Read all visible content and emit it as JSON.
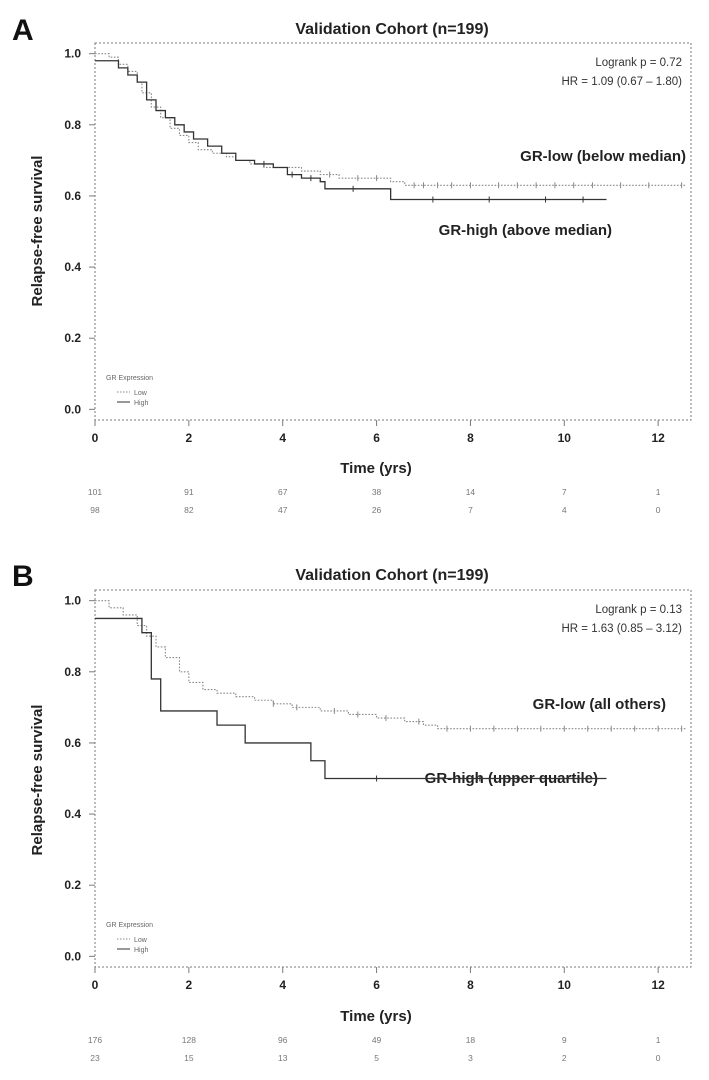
{
  "colors": {
    "low": "#8a8a8a",
    "high": "#333333",
    "frame": "#7a7a7a"
  },
  "chart_data": [
    {
      "type": "line",
      "panel": "A",
      "title": "Validation Cohort (n=199)",
      "xlabel": "Time (yrs)",
      "ylabel": "Relapse-free survival",
      "xlim": [
        0,
        12.7
      ],
      "ylim": [
        -0.03,
        1.03
      ],
      "xticks": [
        0,
        2,
        4,
        6,
        8,
        10,
        12
      ],
      "xtick_labels": [
        "0",
        "2",
        "4",
        "6",
        "8",
        "10",
        "12"
      ],
      "yticks": [
        0.0,
        0.2,
        0.4,
        0.6,
        0.8,
        1.0
      ],
      "ytick_labels": [
        "0.0",
        "0.2",
        "0.4",
        "0.6",
        "0.8",
        "1.0"
      ],
      "grid": false,
      "stats": [
        "Logrank p = 0.72",
        "HR = 1.09 (0.67 – 1.80)"
      ],
      "legend": {
        "title": "GR Expression",
        "entries": [
          "Low",
          "High"
        ],
        "position": "bottom-left"
      },
      "annotations": [
        "GR-low (below median)",
        "GR-high (above median)"
      ],
      "series": [
        {
          "name": "Low",
          "style": "dotted",
          "x": [
            0,
            0.3,
            0.5,
            0.7,
            0.9,
            1.0,
            1.2,
            1.4,
            1.6,
            1.8,
            2.0,
            2.2,
            2.5,
            2.8,
            3.0,
            3.3,
            3.6,
            4.0,
            4.4,
            4.8,
            5.2,
            5.8,
            6.3,
            6.6,
            12.6
          ],
          "y": [
            1.0,
            0.99,
            0.97,
            0.95,
            0.92,
            0.89,
            0.85,
            0.82,
            0.79,
            0.77,
            0.75,
            0.73,
            0.72,
            0.71,
            0.7,
            0.69,
            0.68,
            0.68,
            0.67,
            0.66,
            0.65,
            0.65,
            0.64,
            0.63,
            0.63
          ],
          "censor_x": [
            5.0,
            5.6,
            6.0,
            6.8,
            7.0,
            7.3,
            7.6,
            8.0,
            8.6,
            9.0,
            9.4,
            9.8,
            10.2,
            10.6,
            11.2,
            11.8,
            12.5
          ]
        },
        {
          "name": "High",
          "style": "solid",
          "x": [
            0,
            0.3,
            0.5,
            0.7,
            0.9,
            1.1,
            1.3,
            1.5,
            1.7,
            1.9,
            2.1,
            2.4,
            2.7,
            3.0,
            3.4,
            3.8,
            4.1,
            4.4,
            4.8,
            4.9,
            6.3,
            10.9
          ],
          "y": [
            0.98,
            0.98,
            0.96,
            0.94,
            0.92,
            0.87,
            0.84,
            0.82,
            0.8,
            0.78,
            0.76,
            0.74,
            0.72,
            0.7,
            0.69,
            0.68,
            0.66,
            0.65,
            0.64,
            0.62,
            0.59,
            0.59
          ],
          "censor_x": [
            3.6,
            4.2,
            4.6,
            5.5,
            7.2,
            8.4,
            9.6,
            10.4
          ]
        }
      ],
      "risk_table": [
        [
          "101",
          "91",
          "67",
          "38",
          "14",
          "7",
          "1"
        ],
        [
          "98",
          "82",
          "47",
          "26",
          "7",
          "4",
          "0"
        ]
      ]
    },
    {
      "type": "line",
      "panel": "B",
      "title": "Validation Cohort (n=199)",
      "xlabel": "Time (yrs)",
      "ylabel": "Relapse-free survival",
      "xlim": [
        0,
        12.7
      ],
      "ylim": [
        -0.03,
        1.03
      ],
      "xticks": [
        0,
        2,
        4,
        6,
        8,
        10,
        12
      ],
      "xtick_labels": [
        "0",
        "2",
        "4",
        "6",
        "8",
        "10",
        "12"
      ],
      "yticks": [
        0.0,
        0.2,
        0.4,
        0.6,
        0.8,
        1.0
      ],
      "ytick_labels": [
        "0.0",
        "0.2",
        "0.4",
        "0.6",
        "0.8",
        "1.0"
      ],
      "grid": false,
      "stats": [
        "Logrank p = 0.13",
        "HR = 1.63 (0.85 – 3.12)"
      ],
      "legend": {
        "title": "GR Expression",
        "entries": [
          "Low",
          "High"
        ],
        "position": "bottom-left"
      },
      "annotations": [
        "GR-low (all others)",
        "GR-high (upper quartile)"
      ],
      "series": [
        {
          "name": "Low",
          "style": "dotted",
          "x": [
            0,
            0.3,
            0.6,
            0.9,
            1.1,
            1.3,
            1.5,
            1.8,
            2.0,
            2.3,
            2.6,
            3.0,
            3.4,
            3.8,
            4.2,
            4.8,
            5.4,
            6.0,
            6.6,
            7.0,
            7.3,
            12.6
          ],
          "y": [
            1.0,
            0.98,
            0.96,
            0.93,
            0.9,
            0.87,
            0.84,
            0.8,
            0.77,
            0.75,
            0.74,
            0.73,
            0.72,
            0.71,
            0.7,
            0.69,
            0.68,
            0.67,
            0.66,
            0.65,
            0.64,
            0.64
          ],
          "censor_x": [
            3.8,
            4.3,
            5.1,
            5.6,
            6.2,
            6.9,
            7.5,
            8.0,
            8.5,
            9.0,
            9.5,
            10.0,
            10.5,
            11.0,
            11.5,
            12.0,
            12.5
          ]
        },
        {
          "name": "High",
          "style": "solid",
          "x": [
            0,
            0.8,
            1.0,
            1.2,
            1.4,
            2.6,
            3.2,
            4.6,
            4.9,
            10.9
          ],
          "y": [
            0.95,
            0.95,
            0.91,
            0.78,
            0.69,
            0.65,
            0.6,
            0.55,
            0.5,
            0.5
          ],
          "censor_x": [
            6.0,
            8.2,
            9.0
          ]
        }
      ],
      "risk_table": [
        [
          "176",
          "128",
          "96",
          "49",
          "18",
          "9",
          "1"
        ],
        [
          "23",
          "15",
          "13",
          "5",
          "3",
          "2",
          "0"
        ]
      ]
    }
  ]
}
